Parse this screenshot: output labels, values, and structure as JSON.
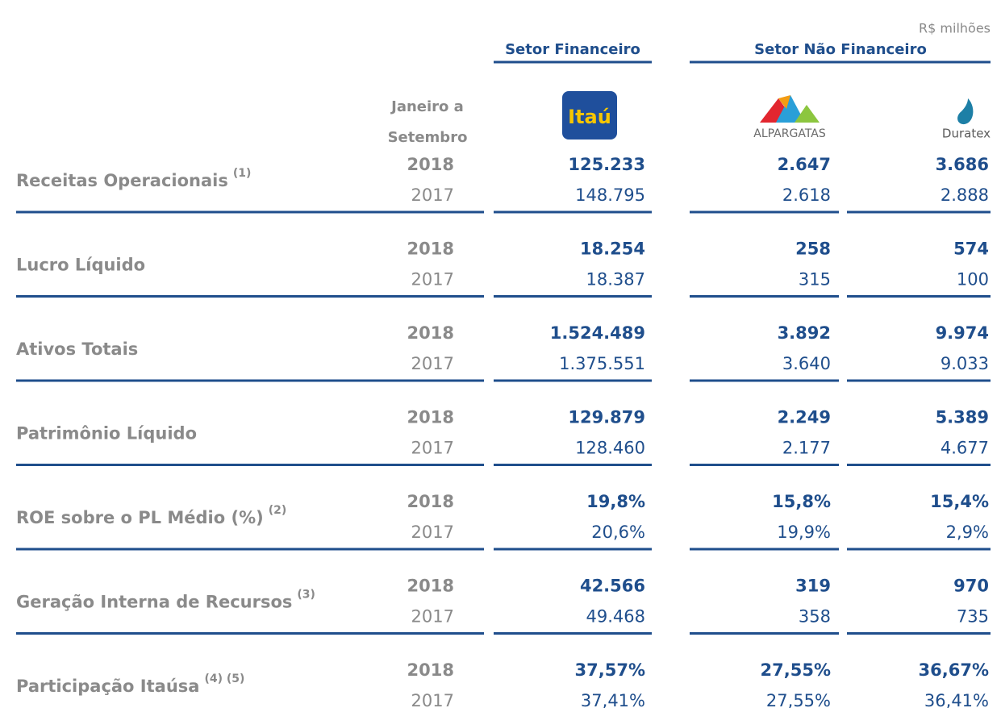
{
  "unit": "R$ milhões",
  "period_label": [
    "Janeiro a",
    "Setembro"
  ],
  "groups": [
    "Setor Financeiro",
    "Setor Não Financeiro"
  ],
  "logos": [
    "Itaú",
    "ALPARGATAS",
    "Duratex"
  ],
  "rows": [
    {
      "label": "Receitas Operacionais",
      "note": "(1)",
      "years": [
        {
          "year": "2018",
          "values": [
            "125.233",
            "2.647",
            "3.686"
          ]
        },
        {
          "year": "2017",
          "values": [
            "148.795",
            "2.618",
            "2.888"
          ]
        }
      ]
    },
    {
      "label": "Lucro Líquido",
      "years": [
        {
          "year": "2018",
          "values": [
            "18.254",
            "258",
            "574"
          ]
        },
        {
          "year": "2017",
          "values": [
            "18.387",
            "315",
            "100"
          ]
        }
      ]
    },
    {
      "label": "Ativos Totais",
      "years": [
        {
          "year": "2018",
          "values": [
            "1.524.489",
            "3.892",
            "9.974"
          ]
        },
        {
          "year": "2017",
          "values": [
            "1.375.551",
            "3.640",
            "9.033"
          ]
        }
      ]
    },
    {
      "label": "Patrimônio Líquido",
      "years": [
        {
          "year": "2018",
          "values": [
            "129.879",
            "2.249",
            "5.389"
          ]
        },
        {
          "year": "2017",
          "values": [
            "128.460",
            "2.177",
            "4.677"
          ]
        }
      ]
    },
    {
      "label": "ROE sobre o PL Médio (%)",
      "note": "(2)",
      "years": [
        {
          "year": "2018",
          "values": [
            "19,8%",
            "15,8%",
            "15,4%"
          ]
        },
        {
          "year": "2017",
          "values": [
            "20,6%",
            "19,9%",
            "2,9%"
          ]
        }
      ]
    },
    {
      "label": "Geração Interna de Recursos",
      "note": "(3)",
      "years": [
        {
          "year": "2018",
          "values": [
            "42.566",
            "319",
            "970"
          ]
        },
        {
          "year": "2017",
          "values": [
            "49.468",
            "358",
            "735"
          ]
        }
      ]
    },
    {
      "label": "Participação Itaúsa",
      "note": "(4) (5)",
      "years": [
        {
          "year": "2018",
          "values": [
            "37,57%",
            "27,55%",
            "36,67%"
          ]
        },
        {
          "year": "2017",
          "values": [
            "37,41%",
            "27,55%",
            "36,41%"
          ]
        }
      ]
    }
  ]
}
